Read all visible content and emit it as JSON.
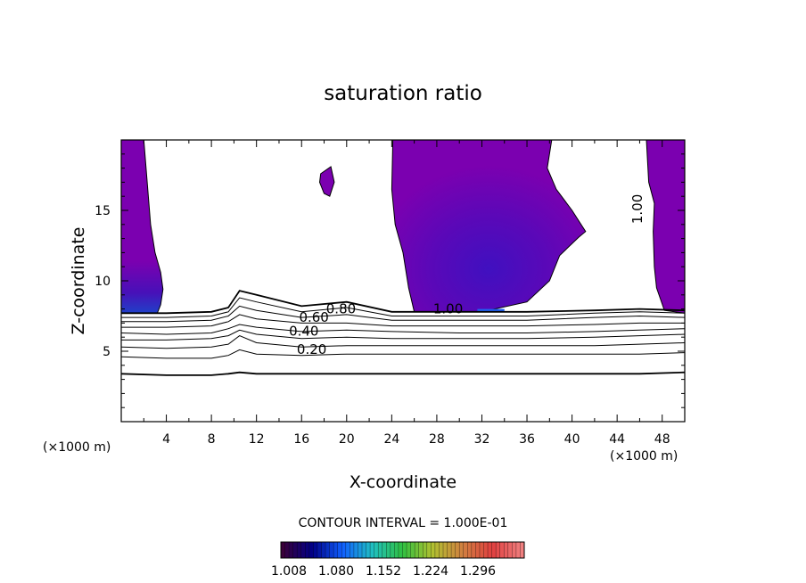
{
  "chart_data": {
    "type": "heatmap",
    "title": "saturation ratio",
    "xlabel": "X-coordinate",
    "ylabel": "Z-coordinate",
    "xunit": "(×1000 m)",
    "xlim": [
      0,
      50
    ],
    "ylim": [
      0,
      20
    ],
    "xticks": [
      4,
      8,
      12,
      16,
      20,
      24,
      28,
      32,
      36,
      40,
      44,
      48
    ],
    "yticks": [
      5,
      10,
      15
    ],
    "contour_interval_text": "CONTOUR INTERVAL = 1.000E-01",
    "contour_labels": [
      {
        "text": "1.00",
        "x": 29.0,
        "z": 7.7
      },
      {
        "text": "1.00",
        "x": 46.2,
        "z": 15.1
      },
      {
        "text": "0.60",
        "x": 17.1,
        "z": 7.1
      },
      {
        "text": "0.40",
        "x": 16.2,
        "z": 6.1
      },
      {
        "text": "0.20",
        "x": 16.9,
        "z": 4.8
      },
      {
        "text": "0.80",
        "x": 19.5,
        "z": 7.7
      }
    ],
    "contours": [
      {
        "level": 0.2,
        "x": [
          0,
          4,
          8,
          9.5,
          10.5,
          12,
          16,
          20,
          24,
          30,
          36,
          42,
          46,
          50
        ],
        "z": [
          3.4,
          3.3,
          3.3,
          3.4,
          3.5,
          3.4,
          3.4,
          3.4,
          3.4,
          3.4,
          3.4,
          3.4,
          3.4,
          3.5
        ]
      },
      {
        "level": 0.3,
        "x": [
          0,
          4,
          8,
          9.5,
          10.5,
          12,
          16,
          20,
          24,
          30,
          36,
          42,
          46,
          50
        ],
        "z": [
          4.6,
          4.5,
          4.5,
          4.7,
          5.1,
          4.8,
          4.7,
          4.8,
          4.8,
          4.8,
          4.8,
          4.8,
          4.8,
          4.9
        ]
      },
      {
        "level": 0.4,
        "x": [
          0,
          4,
          8,
          9.5,
          10.5,
          12,
          16,
          20,
          24,
          30,
          36,
          42,
          46,
          50
        ],
        "z": [
          5.3,
          5.2,
          5.3,
          5.5,
          6.1,
          5.6,
          5.3,
          5.4,
          5.4,
          5.4,
          5.4,
          5.4,
          5.5,
          5.6
        ]
      },
      {
        "level": 0.5,
        "x": [
          0,
          4,
          8,
          9.5,
          10.5,
          12,
          16,
          20,
          24,
          30,
          36,
          42,
          46,
          50
        ],
        "z": [
          5.8,
          5.8,
          5.9,
          6.1,
          6.5,
          6.2,
          5.9,
          6.0,
          5.9,
          5.9,
          5.9,
          6.0,
          6.1,
          6.2
        ]
      },
      {
        "level": 0.6,
        "x": [
          0,
          4,
          8,
          9.5,
          10.5,
          12,
          16,
          20,
          24,
          30,
          36,
          42,
          46,
          50
        ],
        "z": [
          6.3,
          6.2,
          6.3,
          6.6,
          6.9,
          6.7,
          6.4,
          6.5,
          6.4,
          6.3,
          6.3,
          6.4,
          6.5,
          6.6
        ]
      },
      {
        "level": 0.7,
        "x": [
          0,
          4,
          8,
          9.5,
          10.5,
          12,
          16,
          20,
          24,
          30,
          36,
          42,
          46,
          50
        ],
        "z": [
          6.7,
          6.7,
          6.8,
          7.1,
          7.6,
          7.3,
          7.0,
          7.0,
          6.8,
          6.8,
          6.8,
          6.9,
          7.0,
          7.0
        ]
      },
      {
        "level": 0.8,
        "x": [
          0,
          4,
          8,
          9.5,
          10.5,
          12,
          16,
          20,
          24,
          30,
          36,
          42,
          46,
          50
        ],
        "z": [
          7.1,
          7.1,
          7.2,
          7.5,
          8.2,
          7.9,
          7.4,
          7.6,
          7.2,
          7.2,
          7.2,
          7.4,
          7.5,
          7.4
        ]
      },
      {
        "level": 0.9,
        "x": [
          0,
          4,
          8,
          9.5,
          10.5,
          12,
          16,
          20,
          24,
          30,
          36,
          42,
          46,
          50
        ],
        "z": [
          7.4,
          7.4,
          7.5,
          7.8,
          8.8,
          8.5,
          7.8,
          8.1,
          7.5,
          7.5,
          7.5,
          7.7,
          7.8,
          7.7
        ]
      },
      {
        "level": 1.0,
        "x": [
          0,
          4,
          8,
          9.5,
          10.5,
          12,
          16,
          20,
          24,
          30,
          36,
          42,
          46,
          50
        ],
        "z": [
          7.7,
          7.7,
          7.8,
          8.1,
          9.3,
          9.0,
          8.2,
          8.5,
          7.8,
          7.8,
          7.8,
          7.9,
          8.0,
          7.9
        ]
      }
    ],
    "supersaturated_regions": [
      {
        "level": 1.008,
        "x": [
          0,
          2,
          2.3,
          2.6,
          3.0,
          3.5,
          3.7,
          3.5,
          3.2,
          0
        ],
        "z": [
          20,
          20,
          17.0,
          14.0,
          12.0,
          10.6,
          9.4,
          8.3,
          7.7,
          7.7
        ]
      },
      {
        "level": 1.008,
        "x": [
          17.7,
          18.6,
          18.9,
          18.5,
          18.0,
          17.6
        ],
        "z": [
          17.6,
          18.1,
          17.0,
          16.0,
          16.2,
          17.0
        ]
      },
      {
        "level": 1.008,
        "x": [
          24.1,
          38.2,
          37.8,
          38.6,
          40.0,
          41.2,
          40.6,
          38.9,
          38.0,
          36.0,
          32.0,
          26.0,
          25.5,
          25.0,
          24.3,
          24.0,
          24.1
        ],
        "z": [
          20,
          20,
          18.0,
          16.5,
          15.0,
          13.5,
          13.1,
          11.8,
          10.0,
          8.5,
          7.8,
          7.8,
          9.5,
          12.0,
          14.0,
          16.5,
          20
        ]
      },
      {
        "level": 1.008,
        "x": [
          46.6,
          50,
          50,
          48.2,
          47.5,
          47.3,
          47.2,
          47.3,
          46.8,
          46.6
        ],
        "z": [
          20,
          20,
          7.7,
          7.9,
          9.5,
          11.0,
          13.5,
          15.5,
          17.0,
          20
        ]
      }
    ],
    "colorbar": {
      "tick_labels": [
        "1.008",
        "1.080",
        "1.152",
        "1.224",
        "1.296"
      ],
      "colors": [
        "#3a003a",
        "#000088",
        "#1060ff",
        "#20c0c0",
        "#30c040",
        "#b0c030",
        "#d08040",
        "#e04040",
        "#f08080"
      ]
    },
    "colors": {
      "fill_low": "#7b00b0",
      "fill_mid": "#4b10b8",
      "fill_high": "#2060f0",
      "contour": "#000000"
    }
  }
}
